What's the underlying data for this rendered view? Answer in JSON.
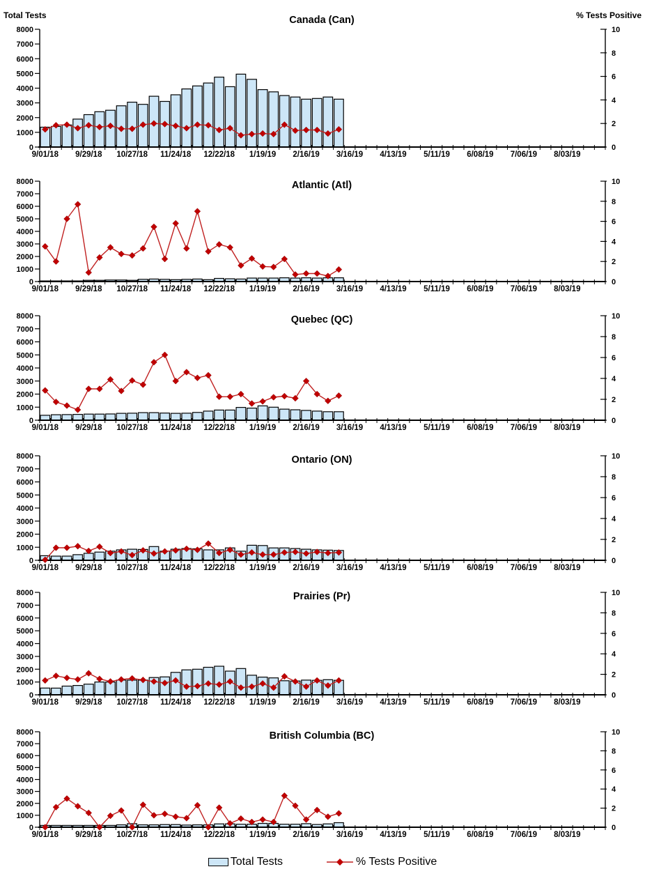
{
  "page": {
    "background": "#ffffff"
  },
  "legend": {
    "total_tests_label": "Total Tests",
    "pct_positive_label": "% Tests Positive"
  },
  "colors": {
    "bar_fill": "#CDE6F7",
    "bar_stroke": "#000000",
    "line": "#C02020",
    "marker": "#C00000",
    "axis": "#000000"
  },
  "chart_data": {
    "type": "combo",
    "shared": {
      "categories": [
        "9/01/18",
        "9/08/18",
        "9/15/18",
        "9/22/18",
        "9/29/18",
        "10/06/18",
        "10/13/18",
        "10/20/18",
        "10/27/18",
        "11/03/18",
        "11/10/18",
        "11/17/18",
        "11/24/18",
        "12/01/18",
        "12/08/18",
        "12/15/18",
        "12/22/18",
        "12/29/18",
        "1/05/19",
        "1/12/19",
        "1/19/19",
        "1/26/19",
        "2/02/19",
        "2/09/19",
        "2/16/19",
        "2/23/19",
        "3/02/19",
        "3/09/19"
      ],
      "x_axis_labels": [
        "9/01/18",
        "9/29/18",
        "10/27/18",
        "11/24/18",
        "12/22/18",
        "1/19/19",
        "2/16/19",
        "3/16/19",
        "4/13/19",
        "5/11/19",
        "6/08/19",
        "7/06/19",
        "8/03/19"
      ],
      "x_axis_weeks_total": 52,
      "left_axis": {
        "title": "Total Tests",
        "min": 0,
        "max": 8000,
        "step": 1000,
        "tick_labels": [
          "0",
          "1000",
          "2000",
          "3000",
          "4000",
          "5000",
          "6000",
          "7000",
          "8000"
        ]
      },
      "right_axis": {
        "title": "% Tests Positive",
        "min": 0,
        "max": 10,
        "step": 2,
        "tick_labels": [
          "0",
          "2",
          "4",
          "6",
          "8",
          "10"
        ]
      },
      "legend_position": "bottom",
      "grid": false
    },
    "charts": [
      {
        "title": "Canada (Can)",
        "series": [
          {
            "name": "Total Tests",
            "type": "bar",
            "axis": "left",
            "values": [
              1350,
              1400,
              1500,
              1900,
              2200,
              2400,
              2500,
              2800,
              3050,
              2900,
              3450,
              3100,
              3550,
              3950,
              4150,
              4350,
              4750,
              4100,
              4950,
              4600,
              3900,
              3750,
              3500,
              3400,
              3250,
              3300,
              3400,
              3250
            ]
          },
          {
            "name": "% Tests Positive",
            "type": "line",
            "axis": "right",
            "values": [
              1.5,
              1.85,
              1.9,
              1.6,
              1.85,
              1.7,
              1.8,
              1.55,
              1.55,
              1.9,
              2.0,
              1.95,
              1.8,
              1.6,
              1.9,
              1.85,
              1.45,
              1.6,
              1.0,
              1.1,
              1.15,
              1.1,
              1.9,
              1.4,
              1.45,
              1.45,
              1.15,
              1.5
            ]
          }
        ]
      },
      {
        "title": "Atlantic (Atl)",
        "series": [
          {
            "name": "Total Tests",
            "type": "bar",
            "axis": "left",
            "values": [
              50,
              50,
              50,
              50,
              100,
              100,
              120,
              120,
              100,
              180,
              200,
              180,
              150,
              180,
              200,
              150,
              250,
              220,
              200,
              280,
              280,
              280,
              300,
              280,
              300,
              280,
              300,
              300
            ]
          },
          {
            "name": "% Tests Positive",
            "type": "line",
            "axis": "right",
            "values": [
              3.5,
              2.0,
              6.25,
              7.7,
              0.9,
              2.4,
              3.4,
              2.75,
              2.6,
              3.3,
              5.45,
              2.25,
              5.8,
              3.3,
              7.0,
              3.0,
              3.7,
              3.4,
              1.6,
              2.3,
              1.5,
              1.45,
              2.25,
              0.7,
              0.8,
              0.8,
              0.55,
              1.2
            ]
          }
        ]
      },
      {
        "title": "Quebec (QC)",
        "series": [
          {
            "name": "Total Tests",
            "type": "bar",
            "axis": "left",
            "values": [
              380,
              420,
              430,
              450,
              470,
              470,
              480,
              530,
              540,
              580,
              580,
              550,
              530,
              540,
              600,
              700,
              780,
              780,
              980,
              930,
              1100,
              1000,
              850,
              800,
              750,
              700,
              650,
              650
            ]
          },
          {
            "name": "% Tests Positive",
            "type": "line",
            "axis": "right",
            "values": [
              2.85,
              1.75,
              1.4,
              1.0,
              3.0,
              3.0,
              3.9,
              2.8,
              3.8,
              3.4,
              5.55,
              6.25,
              3.75,
              4.6,
              4.05,
              4.3,
              2.25,
              2.25,
              2.5,
              1.6,
              1.8,
              2.2,
              2.3,
              2.1,
              3.75,
              2.5,
              1.85,
              2.35
            ]
          }
        ]
      },
      {
        "title": "Ontario (ON)",
        "series": [
          {
            "name": "Total Tests",
            "type": "bar",
            "axis": "left",
            "values": [
              350,
              320,
              320,
              430,
              540,
              630,
              700,
              800,
              850,
              830,
              1050,
              700,
              850,
              900,
              880,
              800,
              800,
              950,
              700,
              1150,
              1130,
              950,
              950,
              900,
              850,
              800,
              780,
              750
            ]
          },
          {
            "name": "% Tests Positive",
            "type": "line",
            "axis": "right",
            "values": [
              0.05,
              1.2,
              1.2,
              1.35,
              0.9,
              1.3,
              0.7,
              0.85,
              0.5,
              0.95,
              0.65,
              0.85,
              0.95,
              1.1,
              1.0,
              1.6,
              0.7,
              1.0,
              0.55,
              0.75,
              0.55,
              0.55,
              0.75,
              0.8,
              0.65,
              0.8,
              0.7,
              0.75
            ]
          }
        ]
      },
      {
        "title": "Prairies (Pr)",
        "series": [
          {
            "name": "Total Tests",
            "type": "bar",
            "axis": "left",
            "values": [
              530,
              520,
              680,
              730,
              830,
              1000,
              1000,
              1150,
              1150,
              1150,
              1350,
              1400,
              1750,
              1950,
              2000,
              2150,
              2230,
              1850,
              2050,
              1530,
              1380,
              1320,
              1100,
              1080,
              1150,
              1130,
              1180,
              1130
            ]
          },
          {
            "name": "% Tests Positive",
            "type": "line",
            "axis": "right",
            "values": [
              1.4,
              1.85,
              1.65,
              1.5,
              2.1,
              1.55,
              1.3,
              1.5,
              1.6,
              1.45,
              1.3,
              1.15,
              1.4,
              0.8,
              0.85,
              1.1,
              1.0,
              1.3,
              0.7,
              0.8,
              1.1,
              0.7,
              1.8,
              1.3,
              0.8,
              1.4,
              0.9,
              1.4
            ]
          }
        ]
      },
      {
        "title": "British Columbia (BC)",
        "series": [
          {
            "name": "Total Tests",
            "type": "bar",
            "axis": "left",
            "values": [
              150,
              150,
              150,
              150,
              150,
              150,
              150,
              200,
              300,
              200,
              200,
              220,
              220,
              180,
              200,
              200,
              280,
              280,
              250,
              250,
              320,
              320,
              250,
              250,
              300,
              230,
              280,
              380
            ]
          },
          {
            "name": "% Tests Positive",
            "type": "line",
            "axis": "right",
            "values": [
              0,
              2.1,
              3.0,
              2.2,
              1.5,
              0,
              1.2,
              1.75,
              0,
              2.35,
              1.25,
              1.4,
              1.1,
              0.95,
              2.3,
              0,
              2.05,
              0.4,
              0.9,
              0.55,
              0.8,
              0.55,
              3.3,
              2.25,
              0.8,
              1.8,
              1.1,
              1.45
            ]
          }
        ]
      }
    ]
  }
}
